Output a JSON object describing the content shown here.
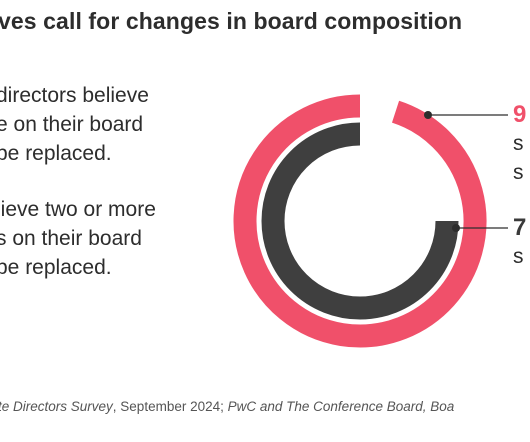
{
  "title": "ves call for changes in board composition",
  "paragraph_1": [
    "directors believe",
    "e on their board",
    "be replaced."
  ],
  "paragraph_2": [
    "lieve two or more",
    "s on their board",
    "be replaced."
  ],
  "callouts": [
    {
      "value": "9",
      "lines": [
        "s",
        "s"
      ]
    },
    {
      "value": "7",
      "lines": [
        "s"
      ]
    }
  ],
  "source": {
    "part1": "te Directors Survey",
    "part2": ", September 2024; ",
    "part3": "PwC and The Conference Board, Boa"
  },
  "colors": {
    "outer_ring": "#f0506a",
    "inner_ring": "#3f3f3f",
    "text": "#2d2d2d"
  },
  "chart_data": {
    "type": "radial-bar",
    "series": [
      {
        "ring": "outer",
        "color": "#f0506a",
        "arc_fraction": 0.95
      },
      {
        "ring": "inner",
        "color": "#3f3f3f",
        "arc_fraction": 0.75
      }
    ]
  }
}
